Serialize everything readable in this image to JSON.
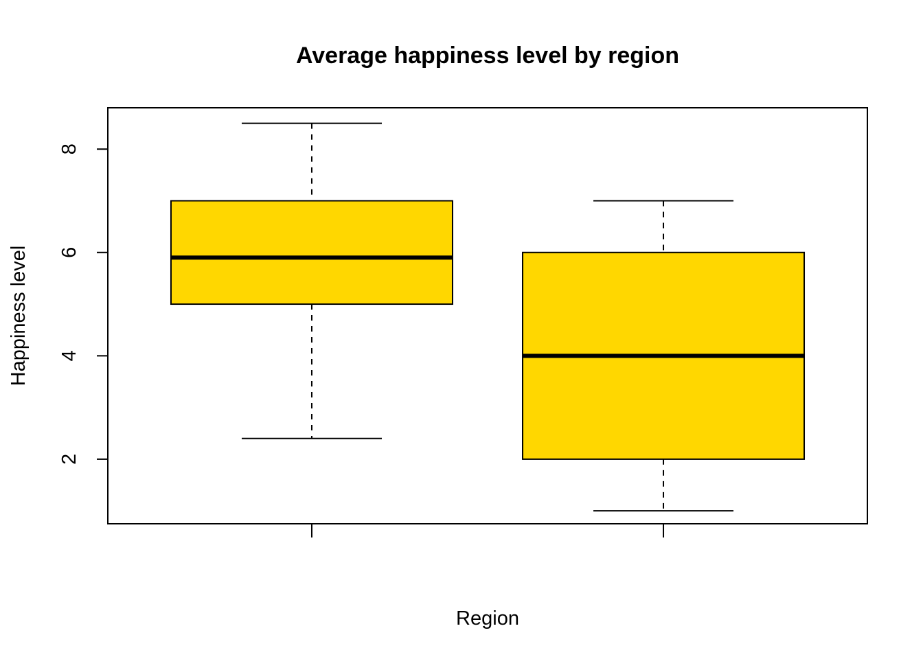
{
  "chart_data": {
    "type": "box",
    "title": "Average happiness level by region",
    "xlabel": "Region",
    "ylabel": "Happiness level",
    "ylim": [
      0.75,
      8.8
    ],
    "yticks": [
      2,
      4,
      6,
      8
    ],
    "box_color": "#FFD700",
    "grid": false,
    "boxes": [
      {
        "min": 2.4,
        "q1": 5.0,
        "median": 5.9,
        "q3": 7.0,
        "max": 8.5
      },
      {
        "min": 1.0,
        "q1": 2.0,
        "median": 4.0,
        "q3": 6.0,
        "max": 7.0
      }
    ]
  }
}
